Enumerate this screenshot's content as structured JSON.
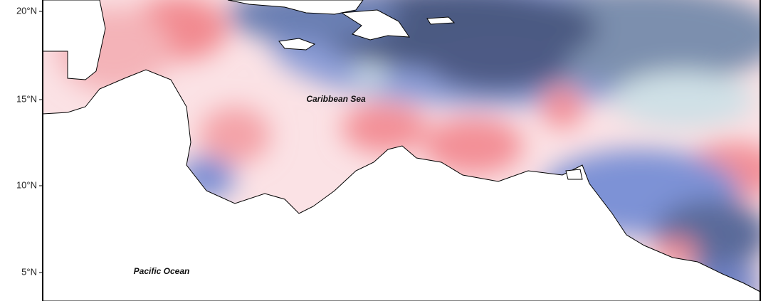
{
  "map": {
    "y_axis_labels": [
      "20°N",
      "15°N",
      "10°N",
      "5°N"
    ],
    "labels": [
      "Caribbean Sea",
      "Pacific Ocean"
    ]
  }
}
